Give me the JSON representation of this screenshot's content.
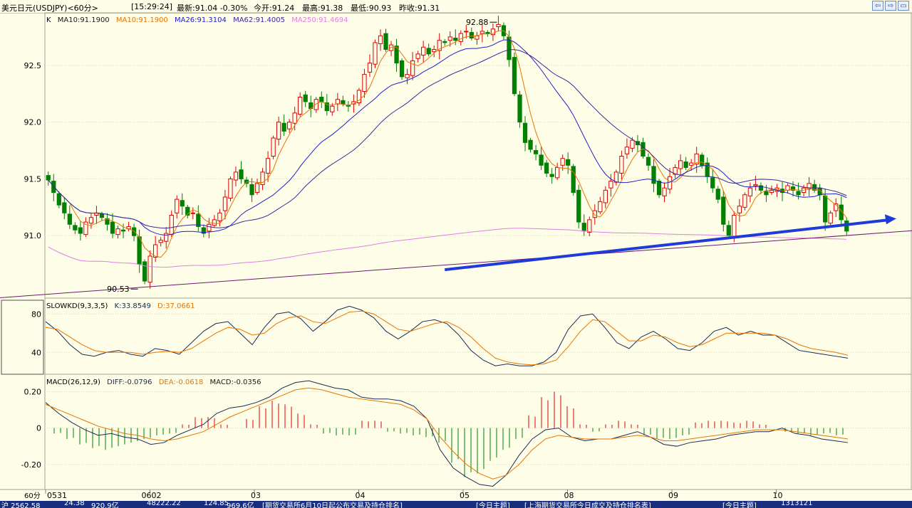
{
  "header": {
    "title": "美元日元(USDJPY)<60分>",
    "time": "[15:29:24]",
    "latest": "最新:91.04 -0.30%",
    "open": "今开:91.24",
    "high": "最高:91.38",
    "low": "最低:90.93",
    "prev_close": "昨收:91.31"
  },
  "window_buttons": [
    "⇦",
    "⇨",
    "▭"
  ],
  "ticker": [
    "沪 2562.58",
    "24.38",
    "920.9亿",
    "48222.22",
    "124.85",
    "969.6亿",
    "[期货交易所6月10日起公布交易及持仓排名]",
    "[今日主题]",
    "[上海期货交易所今日成交及持仓排名表]",
    "[今日主题]",
    "1313121"
  ],
  "colors": {
    "up": "#e00000",
    "down": "#008000",
    "ma10": "#e87400",
    "ma26": "#2020c8",
    "ma62": "#3a2a9a",
    "ma250": "#e080e0",
    "k": "#1a2a50",
    "d": "#e87400",
    "diff": "#1a2a50",
    "dea": "#e87400",
    "arrow": "#1f3ad8",
    "support": "#6a1a6a"
  },
  "chart_data": [
    {
      "type": "candlestick",
      "title": "K",
      "legend": [
        "MA10:91.1900",
        "MA10:91.1900",
        "MA26:91.3104",
        "MA62:91.4005",
        "MA250:91.4694"
      ],
      "y_ticks": [
        "92.5",
        "92.0",
        "91.5",
        "91.0"
      ],
      "ylim": [
        90.45,
        92.95
      ],
      "x_ticks": [
        "0531",
        "0602",
        "03",
        "04",
        "05",
        "08",
        "09",
        "10"
      ],
      "corner_label": "60分",
      "annotations": [
        {
          "text": "92.88",
          "x": 84,
          "y": 92.88
        },
        {
          "text": "90.53",
          "x": 17,
          "y": 90.53
        }
      ],
      "n": 150,
      "closes": [
        91.49,
        91.38,
        91.27,
        91.2,
        91.1,
        91.05,
        91.02,
        91.12,
        91.16,
        91.2,
        91.16,
        91.1,
        91.02,
        91.06,
        91.04,
        91.08,
        91.0,
        90.75,
        90.6,
        90.82,
        90.92,
        90.96,
        91.02,
        91.18,
        91.32,
        91.26,
        91.18,
        91.2,
        91.08,
        91.02,
        91.1,
        91.14,
        91.2,
        91.34,
        91.5,
        91.56,
        91.5,
        91.46,
        91.36,
        91.46,
        91.56,
        91.68,
        91.86,
        92.0,
        91.92,
        92.0,
        92.08,
        92.22,
        92.18,
        92.12,
        92.2,
        92.18,
        92.1,
        92.14,
        92.2,
        92.16,
        92.14,
        92.18,
        92.28,
        92.42,
        92.52,
        92.7,
        92.76,
        92.64,
        92.68,
        92.52,
        92.4,
        92.42,
        92.54,
        92.6,
        92.66,
        92.6,
        92.64,
        92.72,
        92.7,
        92.75,
        92.72,
        92.78,
        92.8,
        92.74,
        92.76,
        92.8,
        92.78,
        92.82,
        92.86,
        92.76,
        92.55,
        92.25,
        92.0,
        91.82,
        91.76,
        91.72,
        91.62,
        91.55,
        91.52,
        91.6,
        91.68,
        91.62,
        91.38,
        91.12,
        91.04,
        91.14,
        91.22,
        91.3,
        91.4,
        91.48,
        91.56,
        91.7,
        91.78,
        91.84,
        91.8,
        91.7,
        91.62,
        91.46,
        91.36,
        91.42,
        91.52,
        91.6,
        91.66,
        91.6,
        91.64,
        91.72,
        91.62,
        91.52,
        91.42,
        91.32,
        91.1,
        91.0,
        91.18,
        91.26,
        91.36,
        91.42,
        91.45,
        91.4,
        91.36,
        91.4,
        91.42,
        91.38,
        91.44,
        91.4,
        91.36,
        91.42,
        91.46,
        91.4,
        91.36,
        91.12,
        91.2,
        91.28,
        91.14,
        91.04
      ],
      "ma250_from": 90.9,
      "support_line": {
        "from": [
          -10,
          90.45
        ],
        "to": [
          212,
          91.22
        ]
      },
      "arrow": {
        "from": [
          74,
          90.7
        ],
        "to": [
          158,
          91.15
        ]
      }
    },
    {
      "type": "line",
      "title": "SLOWKD(9,3,3,5)",
      "legend": [
        "K:33.8549",
        "D:37.0661"
      ],
      "y_ticks": [
        "80",
        "40"
      ],
      "ylim": [
        18,
        95
      ],
      "series": [
        {
          "name": "K",
          "values": [
            72,
            62,
            48,
            38,
            36,
            40,
            42,
            38,
            36,
            44,
            42,
            38,
            50,
            62,
            70,
            72,
            60,
            48,
            66,
            80,
            82,
            75,
            62,
            72,
            84,
            88,
            84,
            76,
            62,
            54,
            62,
            72,
            74,
            70,
            58,
            42,
            32,
            26,
            28,
            26,
            26,
            30,
            40,
            64,
            78,
            80,
            66,
            50,
            44,
            56,
            62,
            54,
            44,
            42,
            50,
            62,
            66,
            58,
            62,
            58,
            58,
            50,
            42,
            40,
            38,
            36,
            34
          ]
        },
        {
          "name": "D",
          "values": [
            66,
            64,
            56,
            48,
            42,
            40,
            40,
            40,
            38,
            40,
            41,
            40,
            44,
            52,
            60,
            66,
            64,
            58,
            60,
            70,
            76,
            78,
            72,
            70,
            76,
            82,
            83,
            80,
            72,
            64,
            62,
            66,
            70,
            72,
            66,
            56,
            44,
            34,
            30,
            28,
            27,
            28,
            32,
            46,
            62,
            74,
            72,
            62,
            52,
            52,
            58,
            56,
            50,
            46,
            48,
            54,
            60,
            60,
            60,
            60,
            58,
            54,
            48,
            44,
            42,
            40,
            37
          ]
        }
      ]
    },
    {
      "type": "bar+line",
      "title": "MACD(26,12,9)",
      "legend": [
        "DIFF:-0.0796",
        "DEA:-0.0618",
        "MACD:-0.0356"
      ],
      "y_ticks": [
        "0.20",
        "0",
        "-0.20"
      ],
      "ylim": [
        -0.33,
        0.28
      ],
      "series": [
        {
          "name": "DIFF",
          "values": [
            0.14,
            0.08,
            0.03,
            -0.01,
            -0.04,
            -0.03,
            -0.05,
            -0.06,
            -0.09,
            -0.08,
            -0.04,
            -0.01,
            0.02,
            0.08,
            0.11,
            0.12,
            0.14,
            0.17,
            0.22,
            0.25,
            0.26,
            0.24,
            0.22,
            0.21,
            0.17,
            0.16,
            0.16,
            0.15,
            0.12,
            0.05,
            -0.12,
            -0.22,
            -0.27,
            -0.31,
            -0.32,
            -0.26,
            -0.15,
            -0.06,
            -0.01,
            0.0,
            -0.05,
            -0.07,
            -0.06,
            -0.06,
            -0.04,
            -0.02,
            -0.05,
            -0.09,
            -0.1,
            -0.08,
            -0.07,
            -0.06,
            -0.04,
            -0.03,
            -0.02,
            -0.02,
            0.0,
            -0.03,
            -0.04,
            -0.06,
            -0.07,
            -0.08
          ]
        },
        {
          "name": "DEA",
          "values": [
            0.13,
            0.1,
            0.07,
            0.04,
            0.01,
            -0.01,
            -0.03,
            -0.04,
            -0.06,
            -0.07,
            -0.06,
            -0.04,
            -0.02,
            0.02,
            0.06,
            0.09,
            0.12,
            0.15,
            0.18,
            0.21,
            0.22,
            0.21,
            0.19,
            0.17,
            0.16,
            0.15,
            0.14,
            0.13,
            0.1,
            0.05,
            -0.05,
            -0.13,
            -0.2,
            -0.25,
            -0.28,
            -0.26,
            -0.2,
            -0.12,
            -0.06,
            -0.04,
            -0.05,
            -0.06,
            -0.06,
            -0.06,
            -0.05,
            -0.04,
            -0.05,
            -0.07,
            -0.07,
            -0.06,
            -0.05,
            -0.04,
            -0.03,
            -0.02,
            -0.01,
            -0.01,
            -0.01,
            -0.02,
            -0.03,
            -0.04,
            -0.05,
            -0.06
          ]
        },
        {
          "name": "MACD",
          "values": [
            -0.03,
            -0.06,
            -0.09,
            -0.11,
            -0.12,
            -0.1,
            -0.08,
            -0.06,
            -0.04,
            -0.03,
            0.02,
            0.06,
            0.06,
            0.02,
            0.0,
            0.05,
            0.12,
            0.15,
            0.13,
            0.08,
            0.02,
            -0.03,
            -0.04,
            -0.04,
            0.04,
            0.04,
            -0.02,
            -0.03,
            -0.04,
            -0.05,
            -0.08,
            -0.19,
            -0.27,
            -0.25,
            -0.18,
            -0.12,
            -0.06,
            0.07,
            0.17,
            0.2,
            0.12,
            0.02,
            -0.02,
            0.02,
            0.04,
            0.02,
            -0.04,
            -0.06,
            -0.06,
            -0.04,
            0.03,
            0.04,
            0.04,
            0.03,
            0.04,
            0.02,
            0.0,
            -0.02,
            -0.03,
            -0.04,
            -0.03,
            -0.04
          ]
        }
      ]
    }
  ]
}
